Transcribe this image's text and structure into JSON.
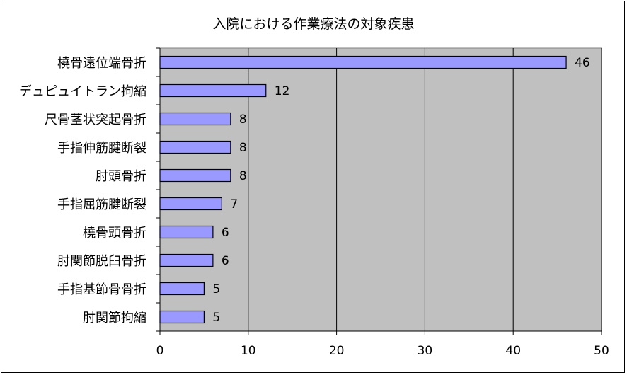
{
  "chart_data": {
    "type": "bar",
    "orientation": "horizontal",
    "title": "入院における作業療法の対象疾患",
    "categories": [
      "橈骨遠位端骨折",
      "デュピュイトラン拘縮",
      "尺骨茎状突起骨折",
      "手指伸筋腱断裂",
      "肘頭骨折",
      "手指屈筋腱断裂",
      "橈骨頭骨折",
      "肘関節脱臼骨折",
      "手指基節骨骨折",
      "肘関節拘縮"
    ],
    "values": [
      46,
      12,
      8,
      8,
      8,
      7,
      6,
      6,
      5,
      5
    ],
    "xlim": [
      0,
      50
    ],
    "x_ticks": [
      "0",
      "10",
      "20",
      "30",
      "40",
      "50"
    ],
    "grid": "vertical",
    "legend": "none",
    "colors": {
      "bar": "#9999ff",
      "plot_background": "#c0c0c0"
    }
  }
}
